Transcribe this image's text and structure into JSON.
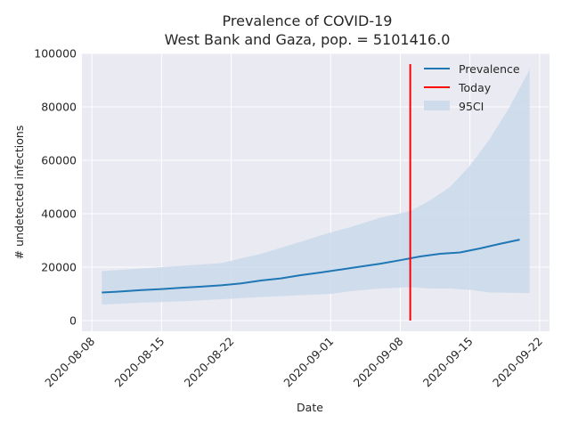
{
  "chart_data": {
    "type": "line",
    "title": "Prevalence of COVID-19",
    "subtitle": "West Bank and Gaza, pop. = 5101416.0",
    "xlabel": "Date",
    "ylabel": "# undetected infections",
    "xlim": [
      "2020-08-07",
      "2020-09-23"
    ],
    "ylim": [
      -4000,
      100000
    ],
    "y_ticks": [
      0,
      20000,
      40000,
      60000,
      80000,
      100000
    ],
    "y_tick_labels": [
      "0",
      "20000",
      "40000",
      "60000",
      "80000",
      "100000"
    ],
    "x_ticks": [
      "2020-08-08",
      "2020-08-15",
      "2020-08-22",
      "2020-09-01",
      "2020-09-08",
      "2020-09-15",
      "2020-09-22"
    ],
    "x_tick_labels": [
      "2020-08-08",
      "2020-08-15",
      "2020-08-22",
      "2020-09-01",
      "2020-09-08",
      "2020-09-15",
      "2020-09-22"
    ],
    "grid": true,
    "legend_position": "top-right",
    "style": {
      "background": "#eaeaf2",
      "grid_color": "#ffffff",
      "prevalence_color": "#1f77b4",
      "today_color": "#ff0000",
      "ci_color": "#c8d8ea"
    },
    "series": [
      {
        "name": "Prevalence",
        "kind": "line",
        "x": [
          "2020-08-09",
          "2020-08-11",
          "2020-08-13",
          "2020-08-15",
          "2020-08-17",
          "2020-08-19",
          "2020-08-21",
          "2020-08-23",
          "2020-08-25",
          "2020-08-27",
          "2020-08-29",
          "2020-08-31",
          "2020-09-02",
          "2020-09-04",
          "2020-09-06",
          "2020-09-08",
          "2020-09-10",
          "2020-09-12",
          "2020-09-14",
          "2020-09-16",
          "2020-09-18",
          "2020-09-20"
        ],
        "y": [
          10500,
          10900,
          11400,
          11800,
          12300,
          12700,
          13200,
          13900,
          15000,
          15800,
          17000,
          18000,
          19100,
          20200,
          21300,
          22600,
          24000,
          25000,
          25500,
          27000,
          28700,
          30300
        ]
      },
      {
        "name": "95CI",
        "kind": "band",
        "x": [
          "2020-08-09",
          "2020-08-13",
          "2020-08-17",
          "2020-08-21",
          "2020-08-25",
          "2020-08-29",
          "2020-09-01",
          "2020-09-03",
          "2020-09-06",
          "2020-09-09",
          "2020-09-11",
          "2020-09-13",
          "2020-09-15",
          "2020-09-17",
          "2020-09-19",
          "2020-09-21"
        ],
        "upper": [
          18500,
          19500,
          20500,
          21500,
          25000,
          29500,
          33000,
          35000,
          38500,
          41000,
          45000,
          50000,
          58000,
          68000,
          80000,
          94000
        ],
        "lower": [
          6000,
          6700,
          7200,
          8000,
          8800,
          9500,
          10000,
          11000,
          12000,
          12500,
          12000,
          12000,
          11500,
          10500,
          10400,
          10300
        ]
      },
      {
        "name": "Today",
        "kind": "vline",
        "x": "2020-09-09",
        "y_range": [
          0,
          96000
        ]
      }
    ]
  }
}
